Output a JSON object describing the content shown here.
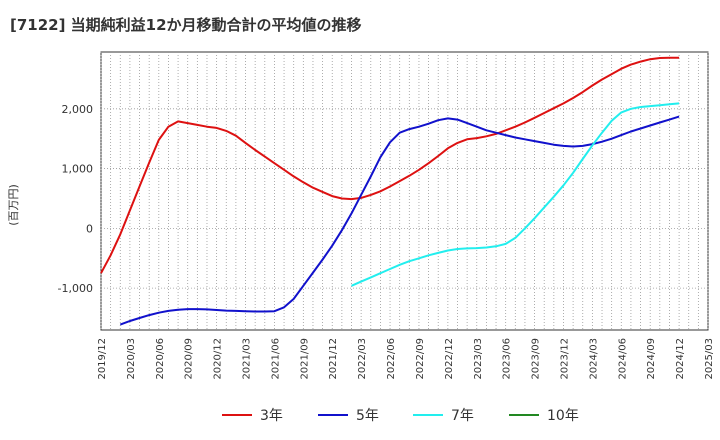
{
  "chart_data": {
    "type": "line",
    "title": "[7122]  当期純利益12か月移動合計の平均値の推移",
    "ylabel": "(百万円)",
    "xlabel": "",
    "ylim": [
      -1700,
      2950
    ],
    "yticks": [
      -1000,
      0,
      1000,
      2000
    ],
    "ytick_labels": [
      "-1,000",
      "0",
      "1,000",
      "2,000"
    ],
    "xlim": [
      "2019/12",
      "2025/03"
    ],
    "xtick_labels": [
      "2019/12",
      "2020/03",
      "2020/06",
      "2020/09",
      "2020/12",
      "2021/03",
      "2021/06",
      "2021/09",
      "2021/12",
      "2022/03",
      "2022/06",
      "2022/09",
      "2022/12",
      "2023/03",
      "2023/06",
      "2023/09",
      "2023/12",
      "2024/03",
      "2024/06",
      "2024/09",
      "2024/12",
      "2025/03"
    ],
    "grid": true,
    "legend_position": "bottom",
    "series": [
      {
        "name": "3年",
        "color": "#dd1111",
        "points": [
          [
            "2019/12",
            -750
          ],
          [
            "2020/01",
            -450
          ],
          [
            "2020/02",
            -100
          ],
          [
            "2020/03",
            300
          ],
          [
            "2020/04",
            700
          ],
          [
            "2020/05",
            1100
          ],
          [
            "2020/06",
            1480
          ],
          [
            "2020/07",
            1700
          ],
          [
            "2020/08",
            1790
          ],
          [
            "2020/09",
            1760
          ],
          [
            "2020/10",
            1730
          ],
          [
            "2020/11",
            1700
          ],
          [
            "2020/12",
            1680
          ],
          [
            "2021/01",
            1630
          ],
          [
            "2021/02",
            1550
          ],
          [
            "2021/03",
            1430
          ],
          [
            "2021/04",
            1310
          ],
          [
            "2021/05",
            1200
          ],
          [
            "2021/06",
            1090
          ],
          [
            "2021/07",
            980
          ],
          [
            "2021/08",
            870
          ],
          [
            "2021/09",
            770
          ],
          [
            "2021/10",
            680
          ],
          [
            "2021/11",
            610
          ],
          [
            "2021/12",
            540
          ],
          [
            "2022/01",
            500
          ],
          [
            "2022/02",
            490
          ],
          [
            "2022/03",
            510
          ],
          [
            "2022/04",
            560
          ],
          [
            "2022/05",
            620
          ],
          [
            "2022/06",
            700
          ],
          [
            "2022/07",
            790
          ],
          [
            "2022/08",
            880
          ],
          [
            "2022/09",
            980
          ],
          [
            "2022/10",
            1090
          ],
          [
            "2022/11",
            1210
          ],
          [
            "2022/12",
            1340
          ],
          [
            "2023/01",
            1430
          ],
          [
            "2023/02",
            1490
          ],
          [
            "2023/03",
            1510
          ],
          [
            "2023/04",
            1540
          ],
          [
            "2023/05",
            1580
          ],
          [
            "2023/06",
            1640
          ],
          [
            "2023/07",
            1700
          ],
          [
            "2023/08",
            1770
          ],
          [
            "2023/09",
            1850
          ],
          [
            "2023/10",
            1930
          ],
          [
            "2023/11",
            2010
          ],
          [
            "2023/12",
            2090
          ],
          [
            "2024/01",
            2180
          ],
          [
            "2024/02",
            2280
          ],
          [
            "2024/03",
            2390
          ],
          [
            "2024/04",
            2490
          ],
          [
            "2024/05",
            2580
          ],
          [
            "2024/06",
            2670
          ],
          [
            "2024/07",
            2740
          ],
          [
            "2024/08",
            2790
          ],
          [
            "2024/09",
            2830
          ],
          [
            "2024/10",
            2850
          ],
          [
            "2024/11",
            2855
          ],
          [
            "2024/12",
            2855
          ]
        ]
      },
      {
        "name": "5年",
        "color": "#1111cc",
        "points": [
          [
            "2020/02",
            -1610
          ],
          [
            "2020/03",
            -1550
          ],
          [
            "2020/04",
            -1500
          ],
          [
            "2020/05",
            -1450
          ],
          [
            "2020/06",
            -1410
          ],
          [
            "2020/07",
            -1380
          ],
          [
            "2020/08",
            -1360
          ],
          [
            "2020/09",
            -1350
          ],
          [
            "2020/10",
            -1350
          ],
          [
            "2020/11",
            -1355
          ],
          [
            "2020/12",
            -1365
          ],
          [
            "2021/01",
            -1375
          ],
          [
            "2021/02",
            -1380
          ],
          [
            "2021/03",
            -1385
          ],
          [
            "2021/04",
            -1390
          ],
          [
            "2021/05",
            -1390
          ],
          [
            "2021/06",
            -1385
          ],
          [
            "2021/07",
            -1320
          ],
          [
            "2021/08",
            -1180
          ],
          [
            "2021/09",
            -960
          ],
          [
            "2021/10",
            -740
          ],
          [
            "2021/11",
            -520
          ],
          [
            "2021/12",
            -290
          ],
          [
            "2022/01",
            -30
          ],
          [
            "2022/02",
            250
          ],
          [
            "2022/03",
            560
          ],
          [
            "2022/04",
            870
          ],
          [
            "2022/05",
            1190
          ],
          [
            "2022/06",
            1440
          ],
          [
            "2022/07",
            1600
          ],
          [
            "2022/08",
            1660
          ],
          [
            "2022/09",
            1700
          ],
          [
            "2022/10",
            1750
          ],
          [
            "2022/11",
            1810
          ],
          [
            "2022/12",
            1840
          ],
          [
            "2023/01",
            1820
          ],
          [
            "2023/02",
            1760
          ],
          [
            "2023/03",
            1700
          ],
          [
            "2023/04",
            1640
          ],
          [
            "2023/05",
            1600
          ],
          [
            "2023/06",
            1560
          ],
          [
            "2023/07",
            1520
          ],
          [
            "2023/08",
            1490
          ],
          [
            "2023/09",
            1460
          ],
          [
            "2023/10",
            1430
          ],
          [
            "2023/11",
            1400
          ],
          [
            "2023/12",
            1380
          ],
          [
            "2024/01",
            1370
          ],
          [
            "2024/02",
            1380
          ],
          [
            "2024/03",
            1410
          ],
          [
            "2024/04",
            1450
          ],
          [
            "2024/05",
            1500
          ],
          [
            "2024/06",
            1560
          ],
          [
            "2024/07",
            1620
          ],
          [
            "2024/08",
            1670
          ],
          [
            "2024/09",
            1720
          ],
          [
            "2024/10",
            1770
          ],
          [
            "2024/11",
            1820
          ],
          [
            "2024/12",
            1870
          ]
        ]
      },
      {
        "name": "7年",
        "color": "#22eeee",
        "points": [
          [
            "2022/02",
            -960
          ],
          [
            "2022/03",
            -890
          ],
          [
            "2022/04",
            -820
          ],
          [
            "2022/05",
            -750
          ],
          [
            "2022/06",
            -680
          ],
          [
            "2022/07",
            -610
          ],
          [
            "2022/08",
            -550
          ],
          [
            "2022/09",
            -500
          ],
          [
            "2022/10",
            -450
          ],
          [
            "2022/11",
            -410
          ],
          [
            "2022/12",
            -370
          ],
          [
            "2023/01",
            -345
          ],
          [
            "2023/02",
            -335
          ],
          [
            "2023/03",
            -330
          ],
          [
            "2023/04",
            -320
          ],
          [
            "2023/05",
            -300
          ],
          [
            "2023/06",
            -260
          ],
          [
            "2023/07",
            -160
          ],
          [
            "2023/08",
            0
          ],
          [
            "2023/09",
            170
          ],
          [
            "2023/10",
            350
          ],
          [
            "2023/11",
            530
          ],
          [
            "2023/12",
            720
          ],
          [
            "2024/01",
            930
          ],
          [
            "2024/02",
            1160
          ],
          [
            "2024/03",
            1390
          ],
          [
            "2024/04",
            1600
          ],
          [
            "2024/05",
            1800
          ],
          [
            "2024/06",
            1940
          ],
          [
            "2024/07",
            2000
          ],
          [
            "2024/08",
            2030
          ],
          [
            "2024/09",
            2045
          ],
          [
            "2024/10",
            2060
          ],
          [
            "2024/11",
            2075
          ],
          [
            "2024/12",
            2090
          ]
        ]
      },
      {
        "name": "10年",
        "color": "#228822",
        "points": []
      }
    ]
  }
}
